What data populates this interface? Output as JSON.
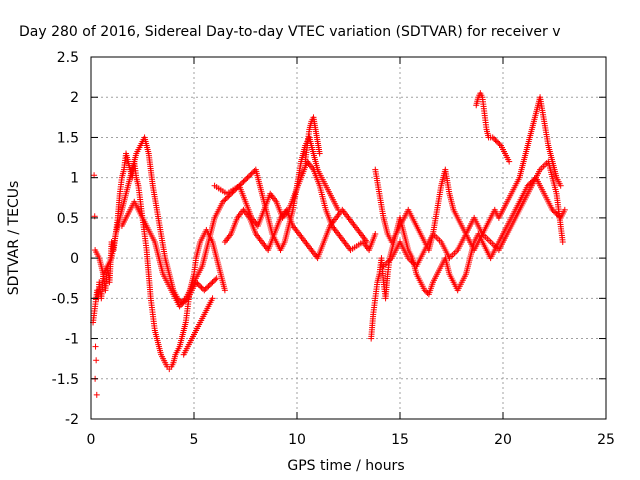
{
  "chart_data": {
    "type": "scatter",
    "title": "Day 280 of 2016, Sidereal Day-to-day VTEC variation (SDTVAR) for receiver v",
    "xlabel": "GPS time / hours",
    "ylabel": "SDTVAR / TECUs",
    "xlim": [
      0,
      25
    ],
    "ylim": [
      -2,
      2.5
    ],
    "x_ticks": [
      "0",
      "5",
      "10",
      "15",
      "20",
      "25"
    ],
    "y_ticks": [
      "2.5",
      "2",
      "1.5",
      "1",
      "0.5",
      "0",
      "-0.5",
      "-1",
      "-1.5",
      "-2"
    ],
    "grid": true,
    "marker": "+",
    "color": "#ff0000",
    "series": [
      {
        "x": [
          0.1,
          0.2,
          0.3,
          0.35,
          0.4,
          0.5,
          0.6,
          0.7,
          0.8,
          0.9,
          1.0,
          1.1,
          1.2,
          1.3,
          1.4,
          1.5,
          1.6,
          1.7,
          1.8,
          1.9,
          2.0,
          2.1,
          2.2,
          2.3,
          2.4,
          2.5,
          2.6,
          2.7,
          2.8,
          2.9,
          3.0,
          3.1,
          3.2,
          3.3,
          3.4,
          3.5,
          3.6,
          3.7,
          3.8,
          3.9,
          4.0,
          4.1,
          4.2,
          4.3,
          4.4,
          4.5,
          4.6,
          4.7,
          4.8,
          4.9,
          5.0,
          5.1,
          5.2,
          5.3,
          5.4,
          5.5,
          5.6,
          5.7,
          5.8,
          5.9,
          6.0,
          6.1,
          6.2,
          6.3,
          6.4,
          6.5
        ],
        "y": [
          -0.8,
          -0.6,
          -0.4,
          -0.5,
          -0.3,
          -0.5,
          -0.2,
          -0.4,
          -0.1,
          -0.3,
          0.2,
          0.1,
          0.3,
          0.5,
          0.8,
          1.0,
          1.1,
          1.3,
          1.2,
          1.1,
          1.0,
          1.2,
          1.0,
          0.9,
          0.7,
          0.5,
          0.3,
          0.1,
          -0.2,
          -0.5,
          -0.7,
          -0.9,
          -1.0,
          -1.1,
          -1.2,
          -1.25,
          -1.3,
          -1.35,
          -1.38,
          -1.35,
          -1.3,
          -1.2,
          -1.15,
          -1.1,
          -1.0,
          -0.9,
          -0.8,
          -0.6,
          -0.4,
          -0.3,
          -0.2,
          0.0,
          0.1,
          0.2,
          0.25,
          0.3,
          0.35,
          0.3,
          0.25,
          0.2,
          0.1,
          0.0,
          -0.1,
          -0.2,
          -0.3,
          -0.4
        ]
      },
      {
        "x": [
          0.2,
          0.4,
          0.6,
          0.8,
          1.0,
          1.2,
          1.4,
          1.6,
          1.8,
          2.0,
          2.2,
          2.4,
          2.6,
          2.8,
          3.0,
          3.2,
          3.4,
          3.6,
          3.8,
          4.0,
          4.2,
          4.4,
          4.6,
          4.8,
          5.0,
          5.2,
          5.4,
          5.6,
          5.8,
          6.0,
          6.2,
          6.4,
          6.6,
          6.8,
          7.0,
          7.2,
          7.4,
          7.6,
          7.8,
          8.0,
          8.2,
          8.4,
          8.6,
          8.8,
          9.0,
          9.2,
          9.4,
          9.6,
          9.8,
          10.0,
          10.2,
          10.4,
          10.6,
          10.8,
          11.0,
          11.2,
          11.4,
          11.6,
          11.8,
          12.0
        ],
        "y": [
          0.1,
          0.0,
          -0.2,
          -0.1,
          0.0,
          0.3,
          0.5,
          0.7,
          0.9,
          1.1,
          1.3,
          1.4,
          1.5,
          1.3,
          0.9,
          0.6,
          0.3,
          0.0,
          -0.2,
          -0.4,
          -0.5,
          -0.55,
          -0.5,
          -0.4,
          -0.3,
          -0.2,
          -0.1,
          0.1,
          0.3,
          0.5,
          0.6,
          0.7,
          0.75,
          0.8,
          0.85,
          0.9,
          0.95,
          1.0,
          1.05,
          1.1,
          0.9,
          0.7,
          0.5,
          0.3,
          0.2,
          0.1,
          0.2,
          0.4,
          0.6,
          0.9,
          1.2,
          1.4,
          1.5,
          1.3,
          1.1,
          1.0,
          0.9,
          0.8,
          0.7,
          0.6
        ]
      },
      {
        "x": [
          1.5,
          1.7,
          1.9,
          2.1,
          2.3,
          2.5,
          2.7,
          2.9,
          3.1,
          3.3,
          3.5,
          3.7,
          3.9,
          4.1,
          4.3,
          4.5,
          4.7,
          4.9,
          5.1,
          5.3,
          5.5,
          5.7,
          5.9,
          6.1
        ],
        "y": [
          0.4,
          0.5,
          0.6,
          0.7,
          0.6,
          0.5,
          0.4,
          0.3,
          0.2,
          0.0,
          -0.2,
          -0.3,
          -0.4,
          -0.5,
          -0.6,
          -0.55,
          -0.5,
          -0.4,
          -0.3,
          -0.35,
          -0.4,
          -0.35,
          -0.3,
          -0.25
        ]
      },
      {
        "x": [
          4.5,
          4.7,
          4.9,
          5.1,
          5.3,
          5.5,
          5.7,
          5.9
        ],
        "y": [
          -1.2,
          -1.1,
          -1.0,
          -0.9,
          -0.8,
          -0.7,
          -0.6,
          -0.5
        ]
      },
      {
        "x": [
          6.0,
          6.3,
          6.6,
          6.9,
          7.2,
          7.5,
          7.8,
          8.1,
          8.4,
          8.7,
          9.0,
          9.3,
          9.6,
          9.9,
          10.2,
          10.5,
          10.8,
          11.1,
          11.4,
          11.7,
          12.0,
          12.3,
          12.6,
          12.9,
          13.2,
          13.5,
          13.8
        ],
        "y": [
          0.9,
          0.85,
          0.8,
          0.85,
          0.9,
          0.7,
          0.5,
          0.4,
          0.6,
          0.8,
          0.7,
          0.5,
          0.6,
          0.8,
          1.0,
          1.2,
          1.1,
          0.9,
          0.6,
          0.4,
          0.3,
          0.2,
          0.1,
          0.15,
          0.2,
          0.1,
          0.3
        ]
      },
      {
        "x": [
          6.5,
          6.8,
          7.1,
          7.4,
          7.7,
          8.0,
          8.3,
          8.6,
          8.9,
          9.2,
          9.5,
          9.8,
          10.1,
          10.4,
          10.7,
          11.0,
          11.3,
          11.6,
          11.9,
          12.2,
          12.5,
          12.8,
          13.1,
          13.4
        ],
        "y": [
          0.2,
          0.3,
          0.5,
          0.6,
          0.5,
          0.3,
          0.2,
          0.1,
          0.3,
          0.5,
          0.6,
          0.4,
          0.3,
          0.2,
          0.1,
          0.0,
          0.2,
          0.4,
          0.5,
          0.6,
          0.5,
          0.4,
          0.3,
          0.2
        ]
      },
      {
        "x": [
          10.4,
          10.5,
          10.6,
          10.7,
          10.8,
          10.9,
          11.0,
          11.1
        ],
        "y": [
          1.2,
          1.4,
          1.6,
          1.7,
          1.75,
          1.6,
          1.45,
          1.3
        ]
      },
      {
        "x": [
          13.6,
          13.7,
          13.8,
          13.9,
          14.0,
          14.1,
          14.2,
          14.3,
          14.4,
          14.5,
          14.6,
          14.7,
          14.8,
          14.9,
          15.0,
          15.2,
          15.4,
          15.6,
          15.8,
          16.0,
          16.2,
          16.4,
          16.6,
          16.8,
          17.0,
          17.2,
          17.4,
          17.6,
          17.8,
          18.0,
          18.2,
          18.4,
          18.6,
          18.8,
          19.0,
          19.2,
          19.4,
          19.6,
          19.8,
          20.0,
          20.2,
          20.4,
          20.6,
          20.8,
          21.0,
          21.2,
          21.4,
          21.6,
          21.8,
          22.0,
          22.2,
          22.4,
          22.6,
          22.8,
          23.0
        ],
        "y": [
          -1.0,
          -0.7,
          -0.5,
          -0.3,
          -0.2,
          0.0,
          -0.3,
          -0.5,
          -0.2,
          0.0,
          0.1,
          0.2,
          0.3,
          0.4,
          0.5,
          0.3,
          0.1,
          0.0,
          -0.2,
          -0.3,
          -0.4,
          -0.45,
          -0.3,
          -0.2,
          -0.1,
          0.0,
          -0.2,
          -0.3,
          -0.4,
          -0.3,
          -0.2,
          0.0,
          0.2,
          0.3,
          0.2,
          0.1,
          0.0,
          0.1,
          0.2,
          0.3,
          0.4,
          0.5,
          0.6,
          0.7,
          0.8,
          0.9,
          0.95,
          1.0,
          0.9,
          0.8,
          0.7,
          0.6,
          0.55,
          0.5,
          0.6
        ]
      },
      {
        "x": [
          13.8,
          14.0,
          14.2,
          14.4,
          14.6,
          14.8,
          15.0,
          15.2,
          15.4,
          15.6,
          15.8,
          16.0,
          16.2,
          16.4,
          16.6,
          16.8,
          17.0,
          17.2,
          17.4,
          17.6,
          17.8,
          18.0,
          18.2,
          18.4,
          18.6,
          18.8,
          19.0,
          19.2,
          19.4,
          19.6,
          19.8,
          20.0,
          20.2,
          20.4,
          20.6,
          20.8,
          21.0,
          21.2,
          21.4,
          21.6,
          21.8,
          22.0,
          22.2,
          22.4,
          22.6,
          22.8
        ],
        "y": [
          1.1,
          0.8,
          0.5,
          0.3,
          0.2,
          0.3,
          0.4,
          0.5,
          0.6,
          0.5,
          0.4,
          0.3,
          0.2,
          0.1,
          0.3,
          0.6,
          0.9,
          1.1,
          0.8,
          0.6,
          0.5,
          0.4,
          0.3,
          0.2,
          0.1,
          0.2,
          0.3,
          0.4,
          0.5,
          0.6,
          0.5,
          0.6,
          0.7,
          0.8,
          0.9,
          1.0,
          1.2,
          1.4,
          1.6,
          1.8,
          2.0,
          1.7,
          1.4,
          1.2,
          1.0,
          0.9
        ]
      },
      {
        "x": [
          18.7,
          18.8,
          18.9,
          19.0,
          19.1,
          19.2,
          19.3,
          19.5,
          19.7,
          19.9,
          20.1,
          20.3
        ],
        "y": [
          1.9,
          2.0,
          2.05,
          2.0,
          1.8,
          1.6,
          1.5,
          1.5,
          1.45,
          1.4,
          1.3,
          1.2
        ]
      },
      {
        "x": [
          14.2,
          14.6,
          15.0,
          15.4,
          15.8,
          16.2,
          16.6,
          17.0,
          17.4,
          17.8,
          18.2,
          18.6,
          19.0,
          19.4,
          19.8,
          20.2,
          20.6,
          21.0,
          21.4,
          21.8,
          22.2,
          22.6,
          22.9
        ],
        "y": [
          -0.1,
          0.0,
          0.2,
          0.0,
          -0.1,
          0.1,
          0.3,
          0.2,
          0.0,
          0.1,
          0.3,
          0.5,
          0.3,
          0.2,
          0.1,
          0.3,
          0.5,
          0.7,
          0.9,
          1.1,
          1.2,
          0.8,
          0.2
        ]
      }
    ],
    "scattered_points": {
      "x": [
        0.15,
        0.18,
        0.22,
        0.25,
        0.2,
        0.28
      ],
      "y": [
        1.03,
        0.52,
        -1.1,
        -1.27,
        -1.5,
        -1.7
      ]
    }
  }
}
